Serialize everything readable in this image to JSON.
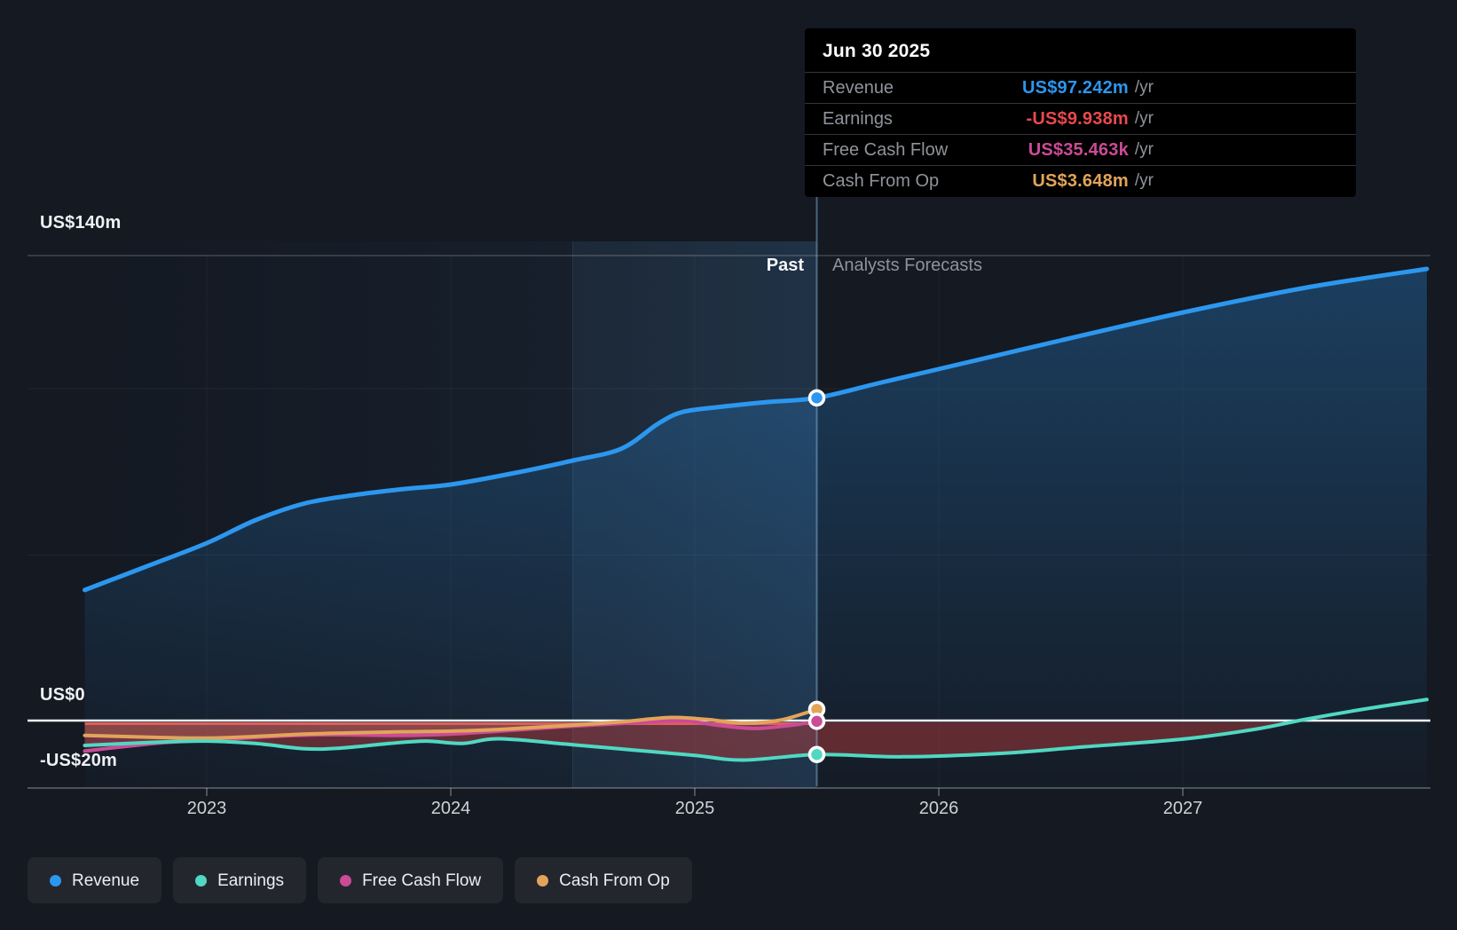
{
  "colors": {
    "revenue": "#2c97ef",
    "earnings": "#50d8c2",
    "free_cash_flow": "#cb4b96",
    "cash_from_op": "#e2a45a",
    "negative": "#e9494c",
    "negative_fill": "#c93e3c",
    "zero_line": "#f3f5f7",
    "divider": "#8fc2ea"
  },
  "tooltip": {
    "title": "Jun 30 2025",
    "rows": [
      {
        "label": "Revenue",
        "value": "US$97.242m",
        "suffix": "/yr"
      },
      {
        "label": "Earnings",
        "value": "-US$9.938m",
        "suffix": "/yr"
      },
      {
        "label": "Free Cash Flow",
        "value": "US$35.463k",
        "suffix": "/yr"
      },
      {
        "label": "Cash From Op",
        "value": "US$3.648m",
        "suffix": "/yr"
      }
    ]
  },
  "regions": {
    "past_label": "Past",
    "forecast_label": "Analysts Forecasts"
  },
  "axis": {
    "y_labels": [
      "US$140m",
      "US$0",
      "-US$20m"
    ],
    "x_labels": [
      "2023",
      "2024",
      "2025",
      "2026",
      "2027"
    ]
  },
  "legend": {
    "items": [
      {
        "label": "Revenue"
      },
      {
        "label": "Earnings"
      },
      {
        "label": "Free Cash Flow"
      },
      {
        "label": "Cash From Op"
      }
    ]
  },
  "chart_data": {
    "type": "area",
    "title": "Earnings and Revenue Growth",
    "units": "US$ millions per year",
    "x_unit": "decimal_year",
    "x_domain": [
      2022.5,
      2028.0
    ],
    "x_ticks": [
      2023,
      2024,
      2025,
      2026,
      2027
    ],
    "ylim": [
      -20,
      140
    ],
    "y_gridlines_m": [
      0,
      50,
      100,
      140
    ],
    "divider_x": 2025.5,
    "divider_date": "Jun 30 2025",
    "highlight_band": [
      2024.5,
      2025.5
    ],
    "legend_position": "bottom",
    "series": [
      {
        "key": "revenue",
        "name": "Revenue",
        "points_past": [
          [
            2022.5,
            39.5
          ],
          [
            2022.75,
            46.5
          ],
          [
            2023.0,
            53.6
          ],
          [
            2023.2,
            60.5
          ],
          [
            2023.4,
            65.5
          ],
          [
            2023.6,
            68.0
          ],
          [
            2023.8,
            69.8
          ],
          [
            2024.0,
            71.2
          ],
          [
            2024.25,
            74.5
          ],
          [
            2024.5,
            78.4
          ],
          [
            2024.7,
            82.0
          ],
          [
            2024.85,
            89.5
          ],
          [
            2024.95,
            93.0
          ],
          [
            2025.1,
            94.5
          ],
          [
            2025.3,
            96.0
          ],
          [
            2025.5,
            97.242
          ]
        ],
        "points_forecast": [
          [
            2025.5,
            97.242
          ],
          [
            2025.75,
            101.6
          ],
          [
            2026.0,
            105.9
          ],
          [
            2026.5,
            114.5
          ],
          [
            2027.0,
            122.9
          ],
          [
            2027.5,
            130.3
          ],
          [
            2028.0,
            136.0
          ]
        ]
      },
      {
        "key": "earnings",
        "name": "Earnings",
        "points_past": [
          [
            2022.5,
            -7.2
          ],
          [
            2022.8,
            -6.2
          ],
          [
            2023.0,
            -5.9
          ],
          [
            2023.2,
            -6.6
          ],
          [
            2023.4,
            -8.2
          ],
          [
            2023.55,
            -8.0
          ],
          [
            2023.75,
            -6.6
          ],
          [
            2023.9,
            -5.9
          ],
          [
            2024.05,
            -6.6
          ],
          [
            2024.2,
            -5.2
          ],
          [
            2024.5,
            -7.0
          ],
          [
            2024.75,
            -8.6
          ],
          [
            2025.0,
            -10.2
          ],
          [
            2025.2,
            -11.6
          ],
          [
            2025.5,
            -9.938
          ]
        ],
        "points_forecast": [
          [
            2025.5,
            -9.938
          ],
          [
            2025.8,
            -10.6
          ],
          [
            2026.0,
            -10.4
          ],
          [
            2026.3,
            -9.4
          ],
          [
            2026.6,
            -7.6
          ],
          [
            2027.0,
            -5.3
          ],
          [
            2027.3,
            -2.3
          ],
          [
            2027.5,
            0.6
          ],
          [
            2027.75,
            3.8
          ],
          [
            2028.0,
            6.6
          ]
        ]
      },
      {
        "key": "free_cash_flow",
        "name": "Free Cash Flow",
        "points_past": [
          [
            2022.5,
            -8.9
          ],
          [
            2022.8,
            -6.5
          ],
          [
            2023.0,
            -5.7
          ],
          [
            2023.3,
            -4.4
          ],
          [
            2023.5,
            -4.0
          ],
          [
            2023.8,
            -4.2
          ],
          [
            2024.0,
            -3.8
          ],
          [
            2024.2,
            -2.9
          ],
          [
            2024.5,
            -1.4
          ],
          [
            2024.75,
            -0.4
          ],
          [
            2024.95,
            0.2
          ],
          [
            2025.1,
            -1.2
          ],
          [
            2025.25,
            -2.1
          ],
          [
            2025.4,
            -1.1
          ],
          [
            2025.5,
            0.035
          ]
        ]
      },
      {
        "key": "cash_from_op",
        "name": "Cash From Op",
        "points_past": [
          [
            2022.5,
            -4.2
          ],
          [
            2022.8,
            -4.8
          ],
          [
            2023.0,
            -5.0
          ],
          [
            2023.2,
            -4.5
          ],
          [
            2023.4,
            -3.8
          ],
          [
            2023.6,
            -3.4
          ],
          [
            2023.8,
            -3.1
          ],
          [
            2024.0,
            -2.9
          ],
          [
            2024.2,
            -2.4
          ],
          [
            2024.5,
            -1.1
          ],
          [
            2024.7,
            -0.1
          ],
          [
            2024.9,
            1.2
          ],
          [
            2025.05,
            0.6
          ],
          [
            2025.2,
            -0.5
          ],
          [
            2025.35,
            0.4
          ],
          [
            2025.5,
            3.648
          ]
        ]
      }
    ],
    "markers_at_divider": {
      "revenue": 97.242,
      "earnings": -9.938,
      "free_cash_flow": 0.035,
      "cash_from_op": 3.648
    }
  }
}
